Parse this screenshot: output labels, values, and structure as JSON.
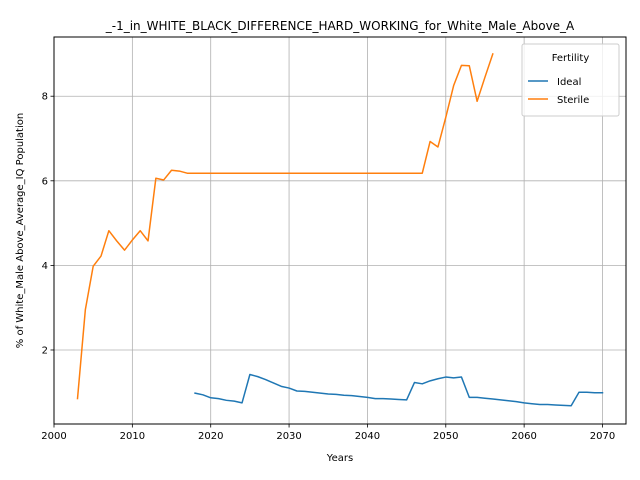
{
  "chart_data": {
    "type": "line",
    "title": "_-1_in_WHITE_BLACK_DIFFERENCE_HARD_WORKING_for_White_Male_Above_A",
    "xlabel": "Years",
    "ylabel": "% of White_Male Above_Average_IQ Population",
    "xlim": [
      2000,
      2073
    ],
    "ylim": [
      0.25,
      9.4
    ],
    "xticks": [
      2000,
      2010,
      2020,
      2030,
      2040,
      2050,
      2060,
      2070
    ],
    "yticks": [
      2,
      4,
      6,
      8
    ],
    "grid": true,
    "legend": {
      "title": "Fertility",
      "placement": "top-right"
    },
    "series": [
      {
        "name": "Ideal",
        "color": "#1f77b4",
        "x": [
          2018,
          2019,
          2020,
          2021,
          2022,
          2023,
          2024,
          2025,
          2026,
          2027,
          2028,
          2029,
          2030,
          2031,
          2032,
          2033,
          2034,
          2035,
          2036,
          2037,
          2038,
          2039,
          2040,
          2041,
          2042,
          2043,
          2044,
          2045,
          2046,
          2047,
          2048,
          2049,
          2050,
          2051,
          2052,
          2053,
          2054,
          2055,
          2056,
          2057,
          2058,
          2059,
          2060,
          2061,
          2062,
          2063,
          2064,
          2065,
          2066,
          2067,
          2068,
          2069,
          2070
        ],
        "y": [
          0.98,
          0.94,
          0.87,
          0.85,
          0.81,
          0.79,
          0.75,
          1.42,
          1.37,
          1.3,
          1.22,
          1.14,
          1.1,
          1.03,
          1.02,
          1.0,
          0.98,
          0.96,
          0.95,
          0.93,
          0.92,
          0.9,
          0.88,
          0.85,
          0.85,
          0.84,
          0.83,
          0.82,
          1.23,
          1.2,
          1.27,
          1.32,
          1.36,
          1.34,
          1.36,
          0.88,
          0.88,
          0.86,
          0.84,
          0.82,
          0.8,
          0.78,
          0.75,
          0.73,
          0.71,
          0.71,
          0.7,
          0.69,
          0.68,
          1.0,
          1.0,
          0.99,
          0.99
        ]
      },
      {
        "name": "Sterile",
        "color": "#ff7f0e",
        "x": [
          2003,
          2004,
          2005,
          2006,
          2007,
          2008,
          2009,
          2010,
          2011,
          2012,
          2013,
          2014,
          2015,
          2016,
          2017,
          2018,
          2019,
          2020,
          2021,
          2022,
          2023,
          2024,
          2025,
          2026,
          2027,
          2028,
          2029,
          2030,
          2031,
          2032,
          2033,
          2034,
          2035,
          2036,
          2037,
          2038,
          2039,
          2040,
          2041,
          2042,
          2043,
          2044,
          2045,
          2046,
          2047,
          2048,
          2049,
          2050,
          2051,
          2052,
          2053,
          2054,
          2055,
          2056
        ],
        "y": [
          0.85,
          2.95,
          3.98,
          4.22,
          4.82,
          4.58,
          4.36,
          4.6,
          4.82,
          4.58,
          6.06,
          6.02,
          6.25,
          6.23,
          6.18,
          6.18,
          6.18,
          6.18,
          6.18,
          6.18,
          6.18,
          6.18,
          6.18,
          6.18,
          6.18,
          6.18,
          6.18,
          6.18,
          6.18,
          6.18,
          6.18,
          6.18,
          6.18,
          6.18,
          6.18,
          6.18,
          6.18,
          6.18,
          6.18,
          6.18,
          6.18,
          6.18,
          6.18,
          6.18,
          6.18,
          6.93,
          6.8,
          7.5,
          8.25,
          8.73,
          8.72,
          7.88,
          8.45,
          9.0
        ]
      }
    ]
  }
}
